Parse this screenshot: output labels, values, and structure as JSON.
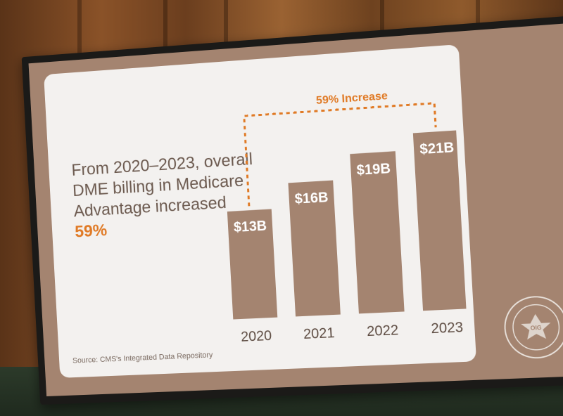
{
  "slide": {
    "headline_main": "From 2020–2023, overall DME billing in Medicare Advantage increased",
    "headline_accent": "59%",
    "source": "Source: CMS's Integrated Data Repository",
    "seal_text": "OFFICE OF INSPECTOR GENERAL"
  },
  "chart_data": {
    "type": "bar",
    "categories": [
      "2020",
      "2021",
      "2022",
      "2023"
    ],
    "values": [
      13,
      16,
      19,
      21
    ],
    "value_labels": [
      "$13B",
      "$16B",
      "$19B",
      "$21B"
    ],
    "annotation": "59% Increase",
    "title": "",
    "xlabel": "",
    "ylabel": "",
    "ylim": [
      0,
      21
    ],
    "bar_color": "#a48470",
    "annotation_color": "#e07a25"
  }
}
